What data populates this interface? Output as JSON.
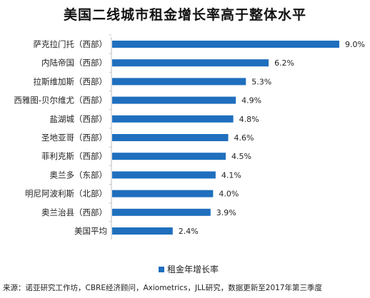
{
  "title": "美国二线城市租金增长率高于整体水平",
  "source": "来源：诺亚研究工作坊，CBRE经济顾问，Axiometrics，JLL研究，数据更新至2017年第三季度",
  "colors": {
    "bar": "#1f6fbe",
    "axis": "#bfbfbf",
    "text": "#222222"
  },
  "chart_data": {
    "type": "bar",
    "orientation": "horizontal",
    "title": "美国二线城市租金增长率高于整体水平",
    "categories": [
      "萨克拉门托（西部）",
      "内陆帝国（西部）",
      "拉斯维加斯（西部）",
      "西雅图-贝尔维尤（西部）",
      "盐湖城（西部）",
      "圣地亚哥（西部）",
      "菲利克斯（西部）",
      "奥兰多（东部）",
      "明尼阿波利斯（北部）",
      "奥兰治县（西部）",
      "美国平均"
    ],
    "series": [
      {
        "name": "租金年增长率",
        "values": [
          9.0,
          6.2,
          5.3,
          4.9,
          4.8,
          4.6,
          4.5,
          4.1,
          4.0,
          3.9,
          2.4
        ],
        "labels": [
          "9.0%",
          "6.2%",
          "5.3%",
          "4.9%",
          "4.8%",
          "4.6%",
          "4.5%",
          "4.1%",
          "4.0%",
          "3.9%",
          "2.4%"
        ]
      }
    ],
    "xlim": [
      0,
      9.0
    ],
    "grid": false,
    "legend": "bottom-center"
  }
}
